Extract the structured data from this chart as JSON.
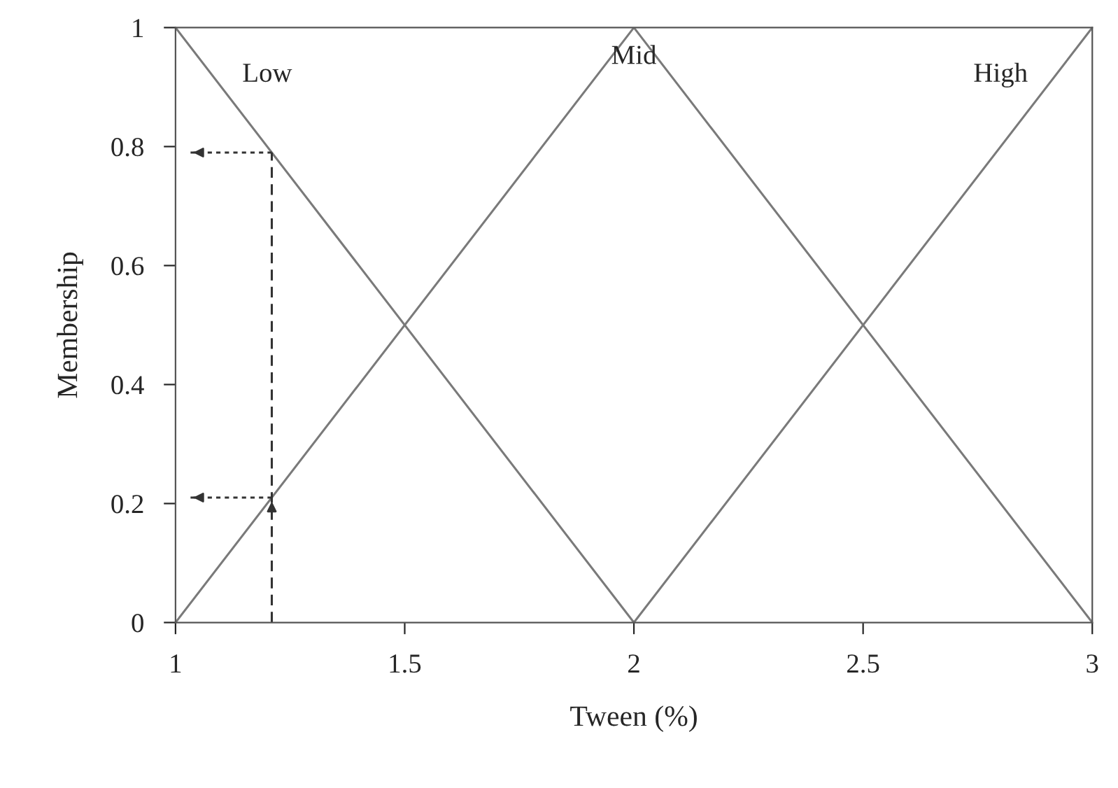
{
  "chart_data": {
    "type": "line",
    "xlabel": "Tween (%)",
    "ylabel": "Membership",
    "xlim": [
      1,
      3
    ],
    "ylim": [
      0,
      1
    ],
    "xticks": [
      1,
      1.5,
      2,
      2.5,
      3
    ],
    "yticks": [
      0,
      0.2,
      0.4,
      0.6,
      0.8,
      1
    ],
    "grid": false,
    "legend": false,
    "marker": "none",
    "series": [
      {
        "name": "Low",
        "color": "#7a7a7a",
        "x": [
          1,
          2
        ],
        "values": [
          1,
          0
        ],
        "line_style": "solid"
      },
      {
        "name": "Mid",
        "color": "#7a7a7a",
        "x": [
          1,
          2,
          3
        ],
        "values": [
          0,
          1,
          0
        ],
        "line_style": "solid"
      },
      {
        "name": "High",
        "color": "#7a7a7a",
        "x": [
          2,
          3
        ],
        "values": [
          0,
          1
        ],
        "line_style": "solid"
      },
      {
        "color": "#333333",
        "x": [
          1.21,
          1.21
        ],
        "values": [
          0,
          0.79
        ],
        "line_style": "dashed"
      },
      {
        "color": "#333333",
        "x": [
          1.21,
          1.03
        ],
        "values": [
          0.79,
          0.79
        ],
        "line_style": "dotted"
      },
      {
        "color": "#333333",
        "x": [
          1.21,
          1.03
        ],
        "values": [
          0.21,
          0.21
        ],
        "line_style": "dotted"
      }
    ]
  }
}
